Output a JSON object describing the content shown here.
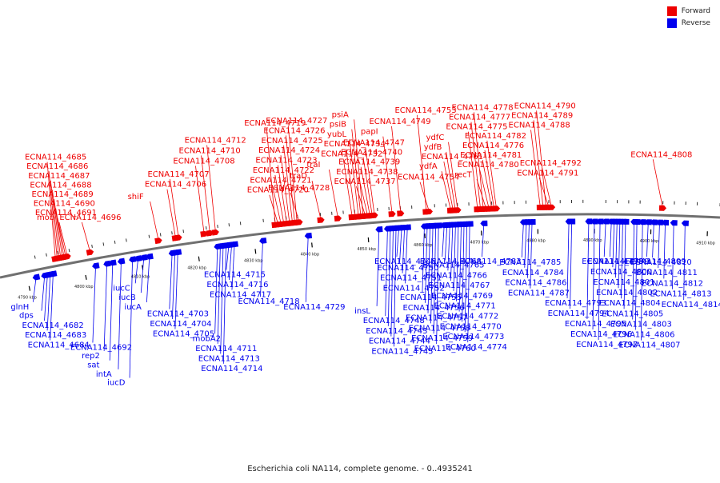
{
  "legend": {
    "forward_label": "Forward",
    "reverse_label": "Reverse",
    "forward_color": "#ee0000",
    "reverse_color": "#0000ee"
  },
  "caption": "Escherichia coli NA114, complete genome. - 0..4935241",
  "ticks": [
    {
      "kbp": 4790,
      "label": "4790 kbp"
    },
    {
      "kbp": 4800,
      "label": "4800 kbp"
    },
    {
      "kbp": 4810,
      "label": "4810 kbp"
    },
    {
      "kbp": 4820,
      "label": "4820 kbp"
    },
    {
      "kbp": 4830,
      "label": "4830 kbp"
    },
    {
      "kbp": 4840,
      "label": "4840 kbp"
    },
    {
      "kbp": 4850,
      "label": "4850 kbp"
    },
    {
      "kbp": 4860,
      "label": "4860 kbp"
    },
    {
      "kbp": 4870,
      "label": "4870 kbp"
    },
    {
      "kbp": 4880,
      "label": "4880 kbp"
    },
    {
      "kbp": 4890,
      "label": "4890 kbp"
    },
    {
      "kbp": 4900,
      "label": "4900 kbp"
    },
    {
      "kbp": 4910,
      "label": "4910 kbp"
    }
  ],
  "forward_genes": [
    {
      "label": "mob",
      "kbp": 4797.5
    },
    {
      "label": "ECNA114_4691",
      "kbp": 4797.2
    },
    {
      "label": "ECNA114_4690",
      "kbp": 4796.9
    },
    {
      "label": "ECNA114_4689",
      "kbp": 4796.6
    },
    {
      "label": "ECNA114_4688",
      "kbp": 4796.3
    },
    {
      "label": "ECNA114_4687",
      "kbp": 4796.0
    },
    {
      "label": "ECNA114_4686",
      "kbp": 4795.7
    },
    {
      "label": "ECNA114_4685",
      "kbp": 4795.4
    },
    {
      "label": "ECNA114_4696",
      "kbp": 4801.5
    },
    {
      "label": "shiF",
      "kbp": 4813.5
    },
    {
      "label": "ECNA114_4706",
      "kbp": 4816.5
    },
    {
      "label": "ECNA114_4707",
      "kbp": 4817.0
    },
    {
      "label": "ECNA114_4708",
      "kbp": 4821.5
    },
    {
      "label": "ECNA114_4710",
      "kbp": 4822.5
    },
    {
      "label": "ECNA114_4712",
      "kbp": 4823.5
    },
    {
      "label": "ECNA114_4719",
      "kbp": 4834.0
    },
    {
      "label": "ECNA114_4720",
      "kbp": 4834.5
    },
    {
      "label": "ECNA114_4721",
      "kbp": 4835.0
    },
    {
      "label": "ECNA114_4722",
      "kbp": 4835.5
    },
    {
      "label": "ECNA114_4723",
      "kbp": 4836.0
    },
    {
      "label": "ECNA114_4724",
      "kbp": 4836.5
    },
    {
      "label": "ECNA114_4725",
      "kbp": 4837.0
    },
    {
      "label": "ECNA114_4726",
      "kbp": 4837.4
    },
    {
      "label": "ECNA114_4727",
      "kbp": 4837.8
    },
    {
      "label": "ECNA114_4728",
      "kbp": 4838.2
    },
    {
      "label": "traD",
      "kbp": 4842.0
    },
    {
      "label": "traI",
      "kbp": 4845.0
    },
    {
      "label": "ECNA114_4732",
      "kbp": 4847.5
    },
    {
      "label": "ECNA114_4734",
      "kbp": 4848.0
    },
    {
      "label": "yubL",
      "kbp": 4848.6
    },
    {
      "label": "psiB",
      "kbp": 4849.0
    },
    {
      "label": "psiA",
      "kbp": 4849.4
    },
    {
      "label": "ECNA114_4737",
      "kbp": 4849.8
    },
    {
      "label": "ECNA114_4738",
      "kbp": 4850.2
    },
    {
      "label": "ECNA114_4739",
      "kbp": 4850.6
    },
    {
      "label": "ECNA114_4740",
      "kbp": 4851.0
    },
    {
      "label": "ECNA114_4747",
      "kbp": 4851.4
    },
    {
      "label": "papI",
      "kbp": 4854.5
    },
    {
      "label": "ECNA114_4749",
      "kbp": 4856.0
    },
    {
      "label": "ECNA114_4753",
      "kbp": 4860.5
    },
    {
      "label": "ECNA114_4754",
      "kbp": 4861.0
    },
    {
      "label": "ydfA",
      "kbp": 4864.8
    },
    {
      "label": "ECNA114_4761",
      "kbp": 4865.2
    },
    {
      "label": "ydfB",
      "kbp": 4865.6
    },
    {
      "label": "ydfC",
      "kbp": 4866.0
    },
    {
      "label": "ECNA114_4775",
      "kbp": 4869.5
    },
    {
      "label": "ECNA114_4777",
      "kbp": 4870.0
    },
    {
      "label": "ECNA114_4778",
      "kbp": 4870.5
    },
    {
      "label": "recT",
      "kbp": 4871.0
    },
    {
      "label": "ECNA114_4780",
      "kbp": 4871.5
    },
    {
      "label": "ECNA114_4781",
      "kbp": 4872.0
    },
    {
      "label": "ECNA114_4776",
      "kbp": 4872.4
    },
    {
      "label": "ECNA114_4782",
      "kbp": 4872.8
    },
    {
      "label": "ECNA114_4788",
      "kbp": 4880.5
    },
    {
      "label": "ECNA114_4789",
      "kbp": 4881.0
    },
    {
      "label": "ECNA114_4790",
      "kbp": 4881.5
    },
    {
      "label": "ECNA114_4791",
      "kbp": 4882.0
    },
    {
      "label": "ECNA114_4792",
      "kbp": 4882.5
    },
    {
      "label": "ECNA114_4808",
      "kbp": 4902.0
    }
  ],
  "reverse_genes": [
    {
      "label": "glnH",
      "kbp": 4791.5
    },
    {
      "label": "dps",
      "kbp": 4793.0
    },
    {
      "label": "ECNA114_4682",
      "kbp": 4793.5
    },
    {
      "label": "ECNA114_4683",
      "kbp": 4794.0
    },
    {
      "label": "ECNA114_4684",
      "kbp": 4794.5
    },
    {
      "label": "ECNA114_4692",
      "kbp": 4802.0
    },
    {
      "label": "rep2",
      "kbp": 4804.0
    },
    {
      "label": "sat",
      "kbp": 4805.0
    },
    {
      "label": "intA",
      "kbp": 4806.5
    },
    {
      "label": "iucD",
      "kbp": 4808.5
    },
    {
      "label": "iucC",
      "kbp": 4809.5
    },
    {
      "label": "iucB",
      "kbp": 4810.5
    },
    {
      "label": "iucA",
      "kbp": 4811.5
    },
    {
      "label": "ECNA114_4703",
      "kbp": 4815.5
    },
    {
      "label": "ECNA114_4704",
      "kbp": 4816.0
    },
    {
      "label": "ECNA114_4705",
      "kbp": 4816.5
    },
    {
      "label": "mobA2",
      "kbp": 4823.5
    },
    {
      "label": "ECNA114_4711",
      "kbp": 4824.0
    },
    {
      "label": "ECNA114_4713",
      "kbp": 4824.5
    },
    {
      "label": "ECNA114_4714",
      "kbp": 4825.0
    },
    {
      "label": "ECNA114_4715",
      "kbp": 4825.5
    },
    {
      "label": "ECNA114_4716",
      "kbp": 4826.0
    },
    {
      "label": "ECNA114_4717",
      "kbp": 4826.5
    },
    {
      "label": "ECNA114_4718",
      "kbp": 4831.5
    },
    {
      "label": "ECNA114_4729",
      "kbp": 4839.5
    },
    {
      "label": "insL",
      "kbp": 4852.0
    },
    {
      "label": "ECNA114_4748",
      "kbp": 4853.5
    },
    {
      "label": "ECNA114_4743",
      "kbp": 4854.0
    },
    {
      "label": "ECNA114_4744",
      "kbp": 4854.5
    },
    {
      "label": "ECNA114_4745",
      "kbp": 4855.0
    },
    {
      "label": "ECNA114_4746",
      "kbp": 4855.5
    },
    {
      "label": "ECNA114_4750",
      "kbp": 4856.0
    },
    {
      "label": "ECNA114_4751",
      "kbp": 4856.5
    },
    {
      "label": "ECNA114_4752",
      "kbp": 4857.0
    },
    {
      "label": "ECNA114_4755",
      "kbp": 4860.0
    },
    {
      "label": "ECNA114_4756",
      "kbp": 4860.5
    },
    {
      "label": "ECNA114_4757",
      "kbp": 4861.0
    },
    {
      "label": "ECNA114_4758",
      "kbp": 4861.5
    },
    {
      "label": "ECNA114_4759",
      "kbp": 4862.0
    },
    {
      "label": "ECNA114_4760",
      "kbp": 4862.5
    },
    {
      "label": "ECNA114_4768",
      "kbp": 4863.5
    },
    {
      "label": "ECNA114_4765",
      "kbp": 4864.0
    },
    {
      "label": "ECNA114_4766",
      "kbp": 4864.5
    },
    {
      "label": "ECNA114_4767",
      "kbp": 4865.0
    },
    {
      "label": "ECNA114_4769",
      "kbp": 4865.5
    },
    {
      "label": "ECNA114_4771",
      "kbp": 4866.0
    },
    {
      "label": "ECNA114_4772",
      "kbp": 4866.5
    },
    {
      "label": "ECNA114_4770",
      "kbp": 4867.0
    },
    {
      "label": "ECNA114_4773",
      "kbp": 4867.5
    },
    {
      "label": "ECNA114_4774",
      "kbp": 4868.0
    },
    {
      "label": "ECNA114_4783",
      "kbp": 4870.5
    },
    {
      "label": "ECNA114_4785",
      "kbp": 4877.5
    },
    {
      "label": "ECNA114_4784",
      "kbp": 4878.0
    },
    {
      "label": "ECNA114_4786",
      "kbp": 4878.5
    },
    {
      "label": "ECNA114_4787",
      "kbp": 4879.0
    },
    {
      "label": "ECNA114_4793",
      "kbp": 4885.5
    },
    {
      "label": "ECNA114_4794",
      "kbp": 4886.0
    },
    {
      "label": "ECNA114_4795",
      "kbp": 4889.0
    },
    {
      "label": "ECNA114_4796",
      "kbp": 4890.0
    },
    {
      "label": "ECNA114_4797",
      "kbp": 4891.0
    },
    {
      "label": "ECNA114_4798",
      "kbp": 4892.0
    },
    {
      "label": "ECNA114_4799",
      "kbp": 4893.0
    },
    {
      "label": "ECNA114_4800",
      "kbp": 4893.5
    },
    {
      "label": "ECNA114_4801",
      "kbp": 4894.0
    },
    {
      "label": "ECNA114_4802",
      "kbp": 4894.5
    },
    {
      "label": "ECNA114_4804",
      "kbp": 4895.0
    },
    {
      "label": "ECNA114_4805",
      "kbp": 4895.5
    },
    {
      "label": "ECNA114_4803",
      "kbp": 4897.0
    },
    {
      "label": "ECNA114_4806",
      "kbp": 4897.5
    },
    {
      "label": "ECNA114_4807",
      "kbp": 4898.5
    },
    {
      "label": "ECNA114_4809",
      "kbp": 4899.5
    },
    {
      "label": "ECNA114_4810",
      "kbp": 4900.5
    },
    {
      "label": "ECNA114_4811",
      "kbp": 4901.5
    },
    {
      "label": "ECNA114_4812",
      "kbp": 4902.5
    },
    {
      "label": "ECNA114_4813",
      "kbp": 4904.0
    },
    {
      "label": "ECNA114_4814",
      "kbp": 4906.0
    }
  ]
}
